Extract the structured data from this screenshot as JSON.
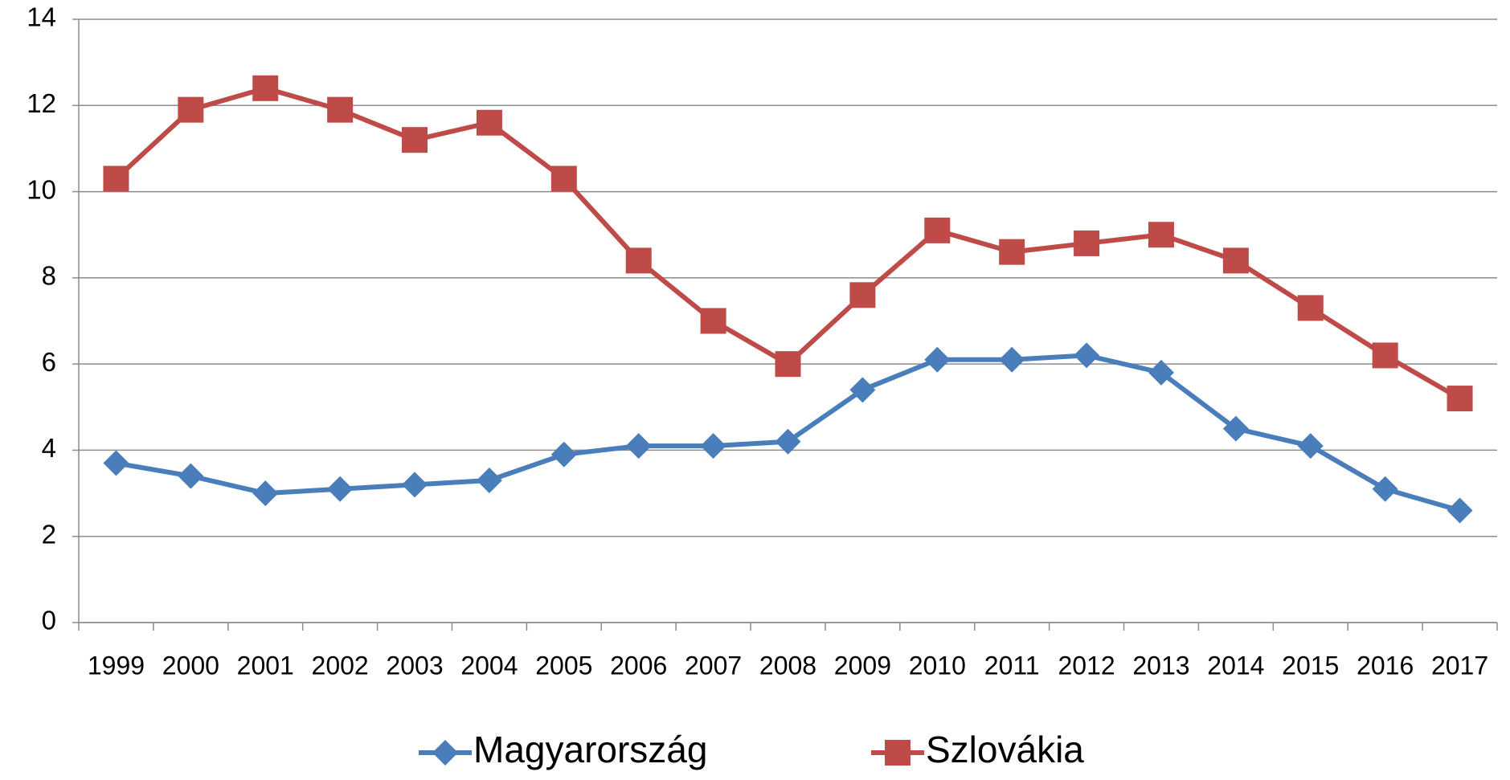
{
  "chart_data": {
    "type": "line",
    "categories": [
      "1999",
      "2000",
      "2001",
      "2002",
      "2003",
      "2004",
      "2005",
      "2006",
      "2007",
      "2008",
      "2009",
      "2010",
      "2011",
      "2012",
      "2013",
      "2014",
      "2015",
      "2016",
      "2017"
    ],
    "series": [
      {
        "name": "Magyarország",
        "color": "#4a7ebb",
        "marker": "diamond",
        "values": [
          3.7,
          3.4,
          3.0,
          3.1,
          3.2,
          3.3,
          3.9,
          4.1,
          4.1,
          4.2,
          5.4,
          6.1,
          6.1,
          6.2,
          5.8,
          4.5,
          4.1,
          3.1,
          2.6
        ]
      },
      {
        "name": "Szlovákia",
        "color": "#be4b48",
        "marker": "square",
        "values": [
          10.3,
          11.9,
          12.4,
          11.9,
          11.2,
          11.6,
          10.3,
          8.4,
          7.0,
          6.0,
          7.6,
          9.1,
          8.6,
          8.8,
          9.0,
          8.4,
          7.3,
          6.2,
          5.2
        ]
      }
    ],
    "ylim": [
      0,
      14
    ],
    "yticks": [
      0,
      2,
      4,
      6,
      8,
      10,
      12,
      14
    ],
    "grid": true,
    "legend": "bottom"
  }
}
